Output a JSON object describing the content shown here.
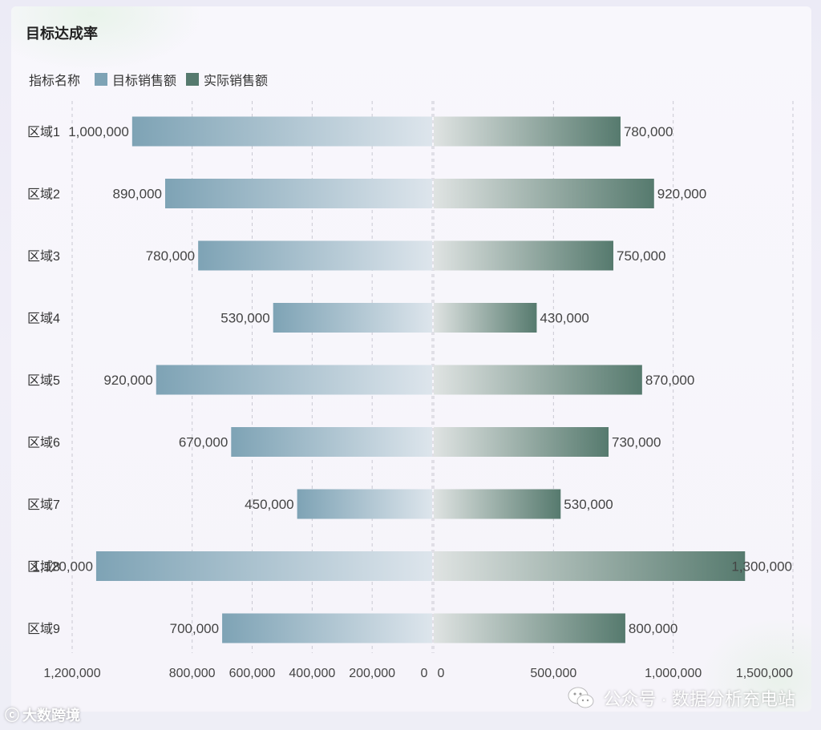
{
  "title": "目标达成率",
  "legend": {
    "label": "指标名称",
    "items": [
      {
        "name": "目标销售额",
        "color": "#7ea3b5"
      },
      {
        "name": "实际销售额",
        "color": "#567a6e"
      }
    ]
  },
  "chart_data": {
    "type": "bar",
    "orientation": "horizontal-mirrored",
    "categories": [
      "区域1",
      "区域2",
      "区域3",
      "区域4",
      "区域5",
      "区域6",
      "区域7",
      "区域8",
      "区域9"
    ],
    "series": [
      {
        "name": "目标销售额",
        "side": "left",
        "values": [
          1000000,
          890000,
          780000,
          530000,
          920000,
          670000,
          450000,
          1120000,
          700000
        ]
      },
      {
        "name": "实际销售额",
        "side": "right",
        "values": [
          780000,
          920000,
          750000,
          430000,
          870000,
          730000,
          530000,
          1300000,
          800000
        ]
      }
    ],
    "value_labels_left": [
      "1,000,000",
      "890,000",
      "780,000",
      "530,000",
      "920,000",
      "670,000",
      "450,000",
      "1,120,000",
      "700,000"
    ],
    "value_labels_right": [
      "780,000",
      "920,000",
      "750,000",
      "430,000",
      "870,000",
      "730,000",
      "530,000",
      "1,300,000",
      "800,000"
    ],
    "left_axis": {
      "ticks": [
        0,
        200000,
        400000,
        600000,
        800000,
        1200000
      ],
      "tick_labels": [
        "0",
        "200,000",
        "400,000",
        "600,000",
        "800,000",
        "1,200,000"
      ],
      "max": 1200000
    },
    "right_axis": {
      "ticks": [
        0,
        500000,
        1000000,
        1500000
      ],
      "tick_labels": [
        "0",
        "500,000",
        "1,000,000",
        "1,500,000"
      ],
      "max": 1500000
    },
    "grid": "dashed-vertical"
  },
  "watermark": {
    "text": "公众号 · 数据分析充电站"
  },
  "brand": {
    "text": "大数跨境"
  }
}
